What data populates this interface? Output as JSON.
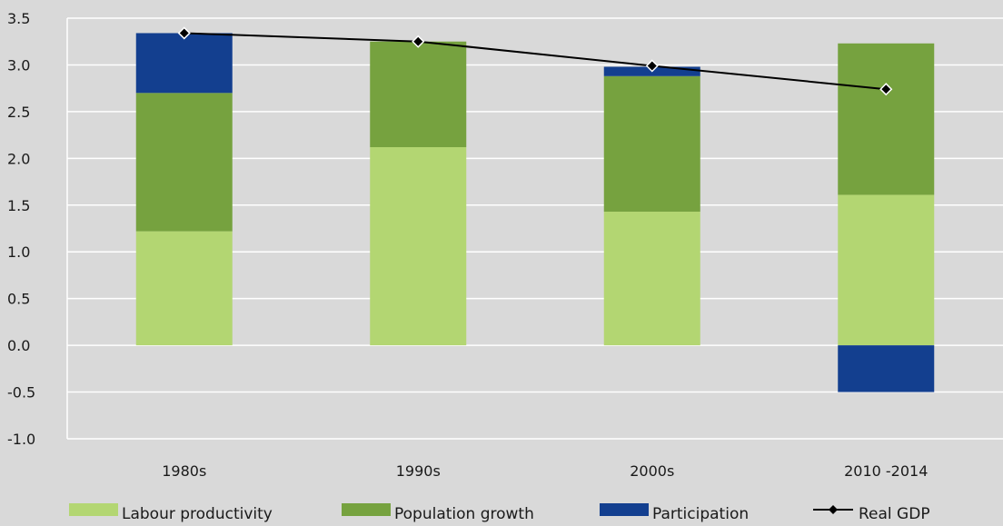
{
  "chart_data": {
    "type": "bar",
    "stacked": true,
    "categories": [
      "1980s",
      "1990s",
      "2000s",
      "2010 -2014"
    ],
    "series": [
      {
        "name": "Labour productivity",
        "kind": "bar",
        "color": "#b3d672",
        "values": [
          1.22,
          2.12,
          1.43,
          1.61
        ]
      },
      {
        "name": "Population growth",
        "kind": "bar",
        "color": "#76a23f",
        "values": [
          1.48,
          1.13,
          1.45,
          1.62
        ]
      },
      {
        "name": "Participation",
        "kind": "bar",
        "color": "#133f8f",
        "values": [
          0.64,
          0.0,
          0.1,
          -0.5
        ]
      },
      {
        "name": "Real GDP",
        "kind": "line",
        "color": "#000000",
        "marker": "diamond",
        "values": [
          3.34,
          3.25,
          2.99,
          2.74
        ]
      }
    ],
    "ylim": [
      -1.0,
      3.5
    ],
    "yticks": [
      "-1.0",
      "-0.5",
      "0.0",
      "0.5",
      "1.0",
      "1.5",
      "2.0",
      "2.5",
      "3.0",
      "3.5"
    ],
    "grid": true,
    "legend_position": "bottom"
  }
}
